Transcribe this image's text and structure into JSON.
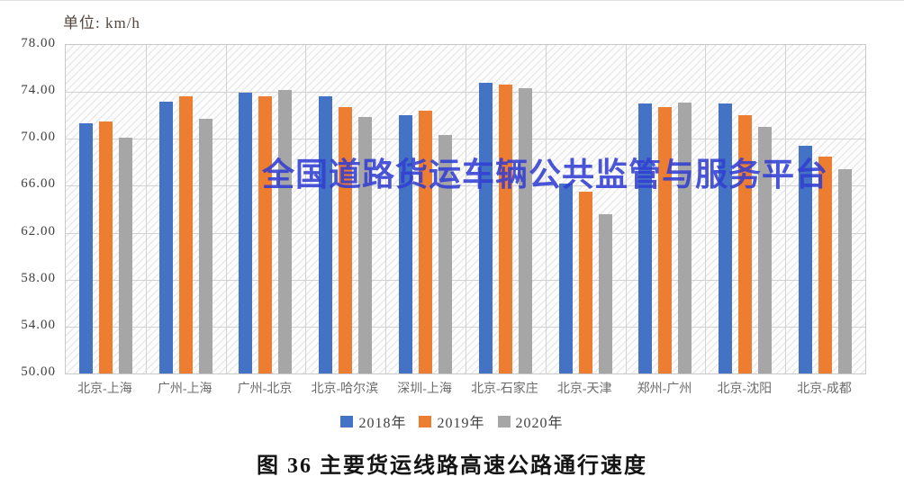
{
  "unit_label": "单位: km/h",
  "watermark": "全国道路货运车辆公共监管与服务平台",
  "caption": "图 36 主要货运线路高速公路通行速度",
  "colors": {
    "series_2018": "#4472C4",
    "series_2019": "#ED7D31",
    "series_2020": "#A6A6A6",
    "watermark_blue": "#313ED1",
    "gridline": "#D2D2D2"
  },
  "chart_data": {
    "type": "bar",
    "title": "图 36 主要货运线路高速公路通行速度",
    "unit": "km/h",
    "categories": [
      "北京-上海",
      "广州-上海",
      "广州-北京",
      "北京-哈尔滨",
      "深圳-上海",
      "北京-石家庄",
      "北京-天津",
      "郑州-广州",
      "北京-沈阳",
      "北京-成都"
    ],
    "series": [
      {
        "name": "2018年",
        "color": "#4472C4",
        "values": [
          71.3,
          73.2,
          73.9,
          73.6,
          72.0,
          74.8,
          66.2,
          73.0,
          73.0,
          69.4
        ]
      },
      {
        "name": "2019年",
        "color": "#ED7D31",
        "values": [
          71.5,
          73.6,
          73.6,
          72.7,
          72.4,
          74.6,
          65.5,
          72.7,
          72.0,
          68.5
        ]
      },
      {
        "name": "2020年",
        "color": "#A6A6A6",
        "values": [
          70.1,
          71.7,
          74.2,
          71.9,
          70.3,
          74.3,
          63.6,
          73.1,
          71.0,
          67.4
        ]
      }
    ],
    "ylim": [
      50,
      78
    ],
    "ytick_step": 4,
    "ytick_labels": [
      "78.00",
      "74.00",
      "70.00",
      "66.00",
      "62.00",
      "58.00",
      "54.00",
      "50.00"
    ],
    "grid": true,
    "legend_position": "bottom",
    "xlabel": "",
    "ylabel": "km/h"
  }
}
